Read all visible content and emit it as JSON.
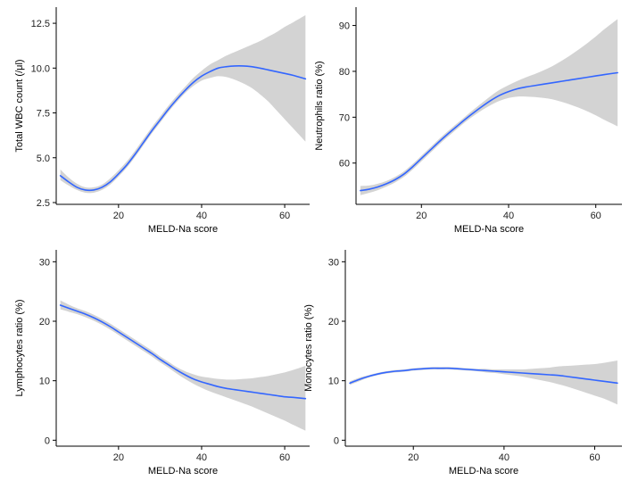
{
  "figure": {
    "background": "#ffffff",
    "line_color": "#3366ff",
    "band_color": "#d3d3d3"
  },
  "chart_data": [
    {
      "type": "line",
      "title": "",
      "xlabel": "MELD-Na score",
      "ylabel": "Total WBC count (/μl)",
      "xlim": [
        5,
        66
      ],
      "ylim": [
        2.4,
        13.4
      ],
      "xticks": [
        20,
        40,
        60
      ],
      "yticks": [
        2.5,
        5.0,
        7.5,
        10.0,
        12.5
      ],
      "ytick_labels": [
        "2.5",
        "5.0",
        "7.5",
        "10.0",
        "12.5"
      ],
      "series": [
        {
          "name": "Total WBC count",
          "x": [
            6,
            8,
            10,
            12,
            14,
            16,
            18,
            20,
            22,
            24,
            26,
            28,
            30,
            32,
            34,
            36,
            38,
            40,
            42,
            44,
            46,
            48,
            50,
            52,
            54,
            56,
            58,
            60,
            62,
            65
          ],
          "y": [
            4.0,
            3.65,
            3.35,
            3.2,
            3.2,
            3.35,
            3.65,
            4.1,
            4.6,
            5.2,
            5.85,
            6.5,
            7.1,
            7.7,
            8.25,
            8.75,
            9.2,
            9.55,
            9.8,
            10.0,
            10.08,
            10.12,
            10.12,
            10.08,
            10.0,
            9.9,
            9.8,
            9.7,
            9.6,
            9.4
          ],
          "lower": [
            3.75,
            3.45,
            3.2,
            3.05,
            3.05,
            3.2,
            3.5,
            3.95,
            4.45,
            5.05,
            5.7,
            6.35,
            6.95,
            7.55,
            8.1,
            8.6,
            9.0,
            9.3,
            9.45,
            9.55,
            9.5,
            9.35,
            9.15,
            8.9,
            8.55,
            8.15,
            7.65,
            7.15,
            6.65,
            5.9
          ],
          "upper": [
            4.35,
            3.9,
            3.55,
            3.35,
            3.35,
            3.5,
            3.85,
            4.3,
            4.8,
            5.4,
            6.05,
            6.7,
            7.3,
            7.9,
            8.45,
            8.95,
            9.45,
            9.85,
            10.2,
            10.45,
            10.7,
            10.9,
            11.1,
            11.3,
            11.5,
            11.75,
            12.0,
            12.3,
            12.55,
            12.95
          ]
        }
      ]
    },
    {
      "type": "line",
      "title": "",
      "xlabel": "MELD-Na score",
      "ylabel": "Neutrophils ratio (%)",
      "xlim": [
        5,
        66
      ],
      "ylim": [
        51,
        94
      ],
      "xticks": [
        20,
        40,
        60
      ],
      "yticks": [
        60,
        70,
        80,
        90
      ],
      "ytick_labels": [
        "60",
        "70",
        "80",
        "90"
      ],
      "series": [
        {
          "name": "Neutrophils ratio",
          "x": [
            6,
            8,
            10,
            12,
            14,
            16,
            18,
            20,
            22,
            24,
            26,
            28,
            30,
            32,
            34,
            36,
            38,
            40,
            42,
            44,
            46,
            48,
            50,
            52,
            54,
            56,
            58,
            60,
            62,
            65
          ],
          "y": [
            54.0,
            54.3,
            54.8,
            55.5,
            56.4,
            57.6,
            59.2,
            61.0,
            62.8,
            64.6,
            66.3,
            67.9,
            69.5,
            71.0,
            72.4,
            73.7,
            74.8,
            75.6,
            76.2,
            76.6,
            76.9,
            77.2,
            77.5,
            77.8,
            78.1,
            78.4,
            78.7,
            79.0,
            79.3,
            79.7
          ],
          "lower": [
            53.0,
            53.5,
            54.1,
            54.9,
            55.8,
            57.0,
            58.6,
            60.4,
            62.2,
            64.0,
            65.7,
            67.3,
            68.9,
            70.3,
            71.6,
            72.7,
            73.6,
            74.2,
            74.5,
            74.5,
            74.4,
            74.2,
            73.9,
            73.4,
            72.8,
            72.1,
            71.3,
            70.4,
            69.4,
            68.0
          ],
          "upper": [
            55.0,
            55.1,
            55.5,
            56.1,
            57.0,
            58.2,
            59.8,
            61.6,
            63.4,
            65.2,
            66.9,
            68.5,
            70.1,
            71.7,
            73.2,
            74.7,
            76.0,
            77.0,
            77.9,
            78.7,
            79.4,
            80.2,
            81.1,
            82.2,
            83.4,
            84.7,
            86.1,
            87.6,
            89.2,
            91.4
          ]
        }
      ]
    },
    {
      "type": "line",
      "title": "",
      "xlabel": "MELD-Na score",
      "ylabel": "Lymphocytes ratio (%)",
      "xlim": [
        5,
        66
      ],
      "ylim": [
        -1,
        32
      ],
      "xticks": [
        20,
        40,
        60
      ],
      "yticks": [
        0,
        10,
        20,
        30
      ],
      "ytick_labels": [
        "0",
        "10",
        "20",
        "30"
      ],
      "series": [
        {
          "name": "Lymphocytes ratio",
          "x": [
            6,
            8,
            10,
            12,
            14,
            16,
            18,
            20,
            22,
            24,
            26,
            28,
            30,
            32,
            34,
            36,
            38,
            40,
            42,
            44,
            46,
            48,
            50,
            52,
            54,
            56,
            58,
            60,
            62,
            65
          ],
          "y": [
            22.7,
            22.2,
            21.7,
            21.2,
            20.6,
            19.9,
            19.1,
            18.2,
            17.3,
            16.4,
            15.5,
            14.6,
            13.6,
            12.7,
            11.8,
            11.0,
            10.3,
            9.8,
            9.4,
            9.0,
            8.7,
            8.5,
            8.3,
            8.1,
            7.9,
            7.7,
            7.5,
            7.3,
            7.2,
            7.0
          ],
          "lower": [
            22.0,
            21.6,
            21.2,
            20.7,
            20.1,
            19.4,
            18.6,
            17.7,
            16.8,
            15.9,
            15.0,
            14.1,
            13.1,
            12.2,
            11.2,
            10.3,
            9.5,
            8.8,
            8.2,
            7.7,
            7.2,
            6.7,
            6.2,
            5.7,
            5.1,
            4.5,
            3.9,
            3.3,
            2.6,
            1.6
          ],
          "upper": [
            23.5,
            22.8,
            22.2,
            21.7,
            21.1,
            20.4,
            19.6,
            18.7,
            17.8,
            16.9,
            16.0,
            15.1,
            14.1,
            13.2,
            12.3,
            11.6,
            11.1,
            10.7,
            10.5,
            10.3,
            10.2,
            10.2,
            10.3,
            10.4,
            10.6,
            10.8,
            11.1,
            11.4,
            11.8,
            12.5
          ]
        }
      ]
    },
    {
      "type": "line",
      "title": "",
      "xlabel": "MELD-Na score",
      "ylabel": "Monocytes ratio (%)",
      "xlim": [
        5,
        66
      ],
      "ylim": [
        -1,
        32
      ],
      "xticks": [
        20,
        40,
        60
      ],
      "yticks": [
        0,
        10,
        20,
        30
      ],
      "ytick_labels": [
        "0",
        "10",
        "20",
        "30"
      ],
      "series": [
        {
          "name": "Monocytes ratio",
          "x": [
            6,
            8,
            10,
            12,
            14,
            16,
            18,
            20,
            22,
            24,
            26,
            28,
            30,
            32,
            34,
            36,
            38,
            40,
            42,
            44,
            46,
            48,
            50,
            52,
            54,
            56,
            58,
            60,
            62,
            65
          ],
          "y": [
            9.6,
            10.2,
            10.7,
            11.1,
            11.4,
            11.6,
            11.7,
            11.9,
            12.0,
            12.1,
            12.1,
            12.1,
            12.0,
            11.9,
            11.8,
            11.7,
            11.6,
            11.5,
            11.4,
            11.3,
            11.2,
            11.1,
            11.0,
            10.9,
            10.7,
            10.5,
            10.3,
            10.1,
            9.9,
            9.6
          ],
          "lower": [
            9.3,
            9.9,
            10.5,
            10.9,
            11.2,
            11.4,
            11.5,
            11.7,
            11.8,
            11.9,
            11.9,
            11.9,
            11.8,
            11.7,
            11.6,
            11.4,
            11.3,
            11.1,
            10.9,
            10.7,
            10.4,
            10.1,
            9.8,
            9.4,
            9.0,
            8.5,
            8.0,
            7.5,
            7.0,
            6.0
          ],
          "upper": [
            9.9,
            10.5,
            10.9,
            11.3,
            11.6,
            11.8,
            11.9,
            12.1,
            12.2,
            12.3,
            12.3,
            12.3,
            12.2,
            12.1,
            12.0,
            12.0,
            11.9,
            11.9,
            11.9,
            11.9,
            12.0,
            12.1,
            12.2,
            12.4,
            12.5,
            12.6,
            12.7,
            12.8,
            13.0,
            13.4
          ]
        }
      ]
    }
  ]
}
